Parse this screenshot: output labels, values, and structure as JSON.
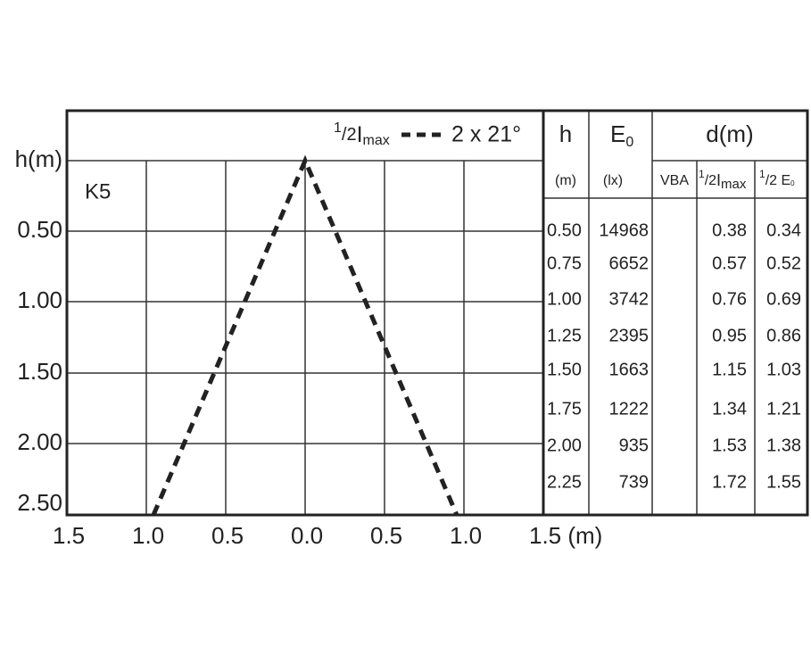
{
  "diagram": {
    "label": "K5",
    "y_axis_title": "h(m)",
    "y_labels": [
      "0.50",
      "1.00",
      "1.50",
      "2.00",
      "2.50"
    ],
    "x_labels": [
      "1.5",
      "1.0",
      "0.5",
      "0.0",
      "0.5",
      "1.0",
      "1.5 (m)"
    ],
    "legend": {
      "sup": "1",
      "den": "/2",
      "symbol": "I",
      "sub": "max",
      "angle": "2 x 21°"
    }
  },
  "table": {
    "headers": {
      "h": "h",
      "e": "E",
      "e_sub": "0",
      "d": "d(m)",
      "h_unit": "(m)",
      "e_unit": "(lx)",
      "vba": "VBA",
      "half_imax": {
        "sup": "1",
        "den": "/2",
        "symbol": "I",
        "sub": "max"
      },
      "half_e0": {
        "sup": "1",
        "den": "/2 E",
        "sub": "0"
      }
    },
    "rows": [
      [
        "0.50",
        "14968",
        "0.38",
        "0.34"
      ],
      [
        "0.75",
        "6652",
        "0.57",
        "0.52"
      ],
      [
        "1.00",
        "3742",
        "0.76",
        "0.69"
      ],
      [
        "1.25",
        "2395",
        "0.95",
        "0.86"
      ],
      [
        "1.50",
        "1663",
        "1.15",
        "1.03"
      ],
      [
        "1.75",
        "1222",
        "1.34",
        "1.21"
      ],
      [
        "2.00",
        "935",
        "1.53",
        "1.38"
      ],
      [
        "2.25",
        "739",
        "1.72",
        "1.55"
      ]
    ]
  }
}
